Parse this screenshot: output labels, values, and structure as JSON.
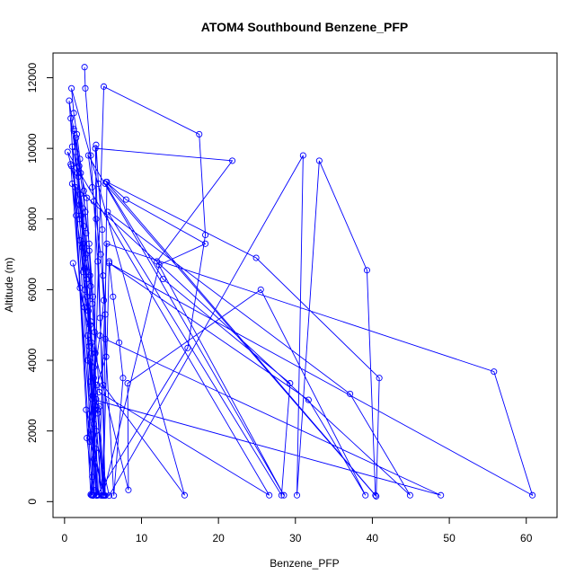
{
  "chart_data": {
    "type": "scatter",
    "title": "ATOM4 Southbound Benzene_PFP",
    "xlabel": "Benzene_PFP",
    "ylabel": "Altitude (m)",
    "xlim": [
      -1.5,
      64
    ],
    "ylim": [
      -450,
      12700
    ],
    "x_ticks": [
      0,
      10,
      20,
      30,
      40,
      50,
      60
    ],
    "y_ticks": [
      0,
      2000,
      4000,
      6000,
      8000,
      10000,
      12000
    ],
    "grid": false,
    "legend": "none",
    "series": [
      {
        "color": "#0000ff",
        "points": [
          [
            2.6,
            12300
          ],
          [
            2.7,
            11700
          ],
          [
            3.4,
            9800
          ],
          [
            3.8,
            8500
          ],
          [
            4.3,
            6800
          ],
          [
            4.6,
            5200
          ],
          [
            5.0,
            3300
          ],
          [
            15.6,
            180
          ],
          [
            0.9,
            11700
          ],
          [
            1.2,
            11000
          ],
          [
            1.6,
            10400
          ],
          [
            2.0,
            9700
          ],
          [
            2.5,
            8800
          ],
          [
            2.8,
            7600
          ],
          [
            3.1,
            6500
          ],
          [
            3.4,
            5100
          ],
          [
            3.8,
            3800
          ],
          [
            3.9,
            2600
          ],
          [
            3.5,
            180
          ],
          [
            5.1,
            11750
          ],
          [
            17.5,
            10400
          ],
          [
            18.3,
            7550
          ],
          [
            16.0,
            4350
          ],
          [
            4.2,
            170
          ],
          [
            0.6,
            11350
          ],
          [
            1.2,
            10500
          ],
          [
            1.9,
            9500
          ],
          [
            2.7,
            8200
          ],
          [
            3.2,
            7300
          ],
          [
            3.7,
            5800
          ],
          [
            4.5,
            3100
          ],
          [
            26.6,
            180
          ],
          [
            0.4,
            9900
          ],
          [
            0.9,
            9500
          ],
          [
            2.2,
            8100
          ],
          [
            2.6,
            6000
          ],
          [
            3.5,
            4500
          ],
          [
            3.8,
            2200
          ],
          [
            3.6,
            180
          ],
          [
            1.0,
            10050
          ],
          [
            1.8,
            9200
          ],
          [
            2.5,
            7800
          ],
          [
            3.3,
            6400
          ],
          [
            3.9,
            4800
          ],
          [
            4.1,
            2900
          ],
          [
            3.4,
            200
          ],
          [
            0.8,
            10850
          ],
          [
            1.4,
            9900
          ],
          [
            2.0,
            8700
          ],
          [
            2.8,
            7000
          ],
          [
            3.0,
            5500
          ],
          [
            3.4,
            3400
          ],
          [
            4.0,
            1500
          ],
          [
            4.8,
            170
          ],
          [
            1.5,
            10300
          ],
          [
            2.1,
            9300
          ],
          [
            2.9,
            8600
          ],
          [
            3.2,
            7100
          ],
          [
            3.6,
            5600
          ],
          [
            4.0,
            4200
          ],
          [
            4.1,
            2000
          ],
          [
            4.3,
            200
          ],
          [
            1.2,
            10550
          ],
          [
            1.6,
            9450
          ],
          [
            2.4,
            8300
          ],
          [
            2.7,
            6900
          ],
          [
            3.4,
            6100
          ],
          [
            3.0,
            4000
          ],
          [
            3.3,
            1700
          ],
          [
            5.2,
            170
          ],
          [
            1.7,
            9300
          ],
          [
            2.0,
            8400
          ],
          [
            2.4,
            7300
          ],
          [
            2.9,
            6300
          ],
          [
            3.3,
            5000
          ],
          [
            3.7,
            3000
          ],
          [
            2.9,
            1800
          ],
          [
            3.8,
            190
          ],
          [
            4.1,
            10100
          ],
          [
            4.4,
            9000
          ],
          [
            4.9,
            7700
          ],
          [
            5.0,
            6400
          ],
          [
            5.3,
            5300
          ],
          [
            5.4,
            4100
          ],
          [
            4.2,
            3300
          ],
          [
            5.3,
            170
          ],
          [
            4.0,
            10000
          ],
          [
            21.8,
            9650
          ],
          [
            12.0,
            6800
          ],
          [
            28.5,
            180
          ],
          [
            3.1,
            9800
          ],
          [
            3.6,
            8900
          ],
          [
            4.1,
            8000
          ],
          [
            4.7,
            7000
          ],
          [
            5.1,
            5700
          ],
          [
            4.6,
            4700
          ],
          [
            3.8,
            3500
          ],
          [
            4.1,
            180
          ],
          [
            0.8,
            9550
          ],
          [
            1.4,
            8900
          ],
          [
            1.9,
            8000
          ],
          [
            2.3,
            7200
          ],
          [
            2.6,
            6600
          ],
          [
            3.1,
            5400
          ],
          [
            3.5,
            4200
          ],
          [
            3.5,
            2400
          ],
          [
            5.8,
            170
          ],
          [
            31.0,
            9800
          ],
          [
            30.2,
            180
          ],
          [
            33.1,
            9650
          ],
          [
            39.3,
            6550
          ],
          [
            40.4,
            180
          ],
          [
            5.4,
            9050
          ],
          [
            8.0,
            8550
          ],
          [
            18.3,
            7300
          ],
          [
            12.3,
            6700
          ],
          [
            5.0,
            180
          ],
          [
            5.5,
            9050
          ],
          [
            24.9,
            6900
          ],
          [
            40.9,
            3500
          ],
          [
            40.5,
            150
          ],
          [
            5.3,
            9000
          ],
          [
            12.8,
            6300
          ],
          [
            29.3,
            3350
          ],
          [
            28.2,
            180
          ],
          [
            5.6,
            8200
          ],
          [
            37.1,
            3050
          ],
          [
            44.9,
            180
          ],
          [
            1.0,
            9000
          ],
          [
            1.5,
            8100
          ],
          [
            2.0,
            7400
          ],
          [
            2.4,
            6500
          ],
          [
            2.9,
            5800
          ],
          [
            3.2,
            4400
          ],
          [
            3.6,
            3000
          ],
          [
            3.8,
            1200
          ],
          [
            4.4,
            180
          ],
          [
            5.5,
            7300
          ],
          [
            55.8,
            3680
          ],
          [
            60.8,
            180
          ],
          [
            5.8,
            6750
          ],
          [
            31.7,
            2880
          ],
          [
            39.1,
            180
          ],
          [
            25.5,
            6000
          ],
          [
            8.2,
            3350
          ],
          [
            8.3,
            330
          ],
          [
            1.1,
            6750
          ],
          [
            2.0,
            6050
          ],
          [
            2.6,
            5500
          ],
          [
            3.0,
            4700
          ],
          [
            3.4,
            3950
          ],
          [
            3.9,
            2700
          ],
          [
            4.3,
            2500
          ],
          [
            5.0,
            170
          ],
          [
            5.8,
            6800
          ],
          [
            6.3,
            5800
          ],
          [
            7.1,
            4500
          ],
          [
            7.6,
            3500
          ],
          [
            6.4,
            170
          ],
          [
            5.3,
            4600
          ],
          [
            48.9,
            180
          ],
          [
            3.6,
            2900
          ],
          [
            4.6,
            2700
          ],
          [
            4.3,
            2600
          ],
          [
            5.1,
            170
          ],
          [
            2.8,
            2600
          ],
          [
            3.4,
            1900
          ],
          [
            3.6,
            700
          ],
          [
            3.9,
            320
          ],
          [
            3.7,
            170
          ]
        ]
      }
    ]
  }
}
